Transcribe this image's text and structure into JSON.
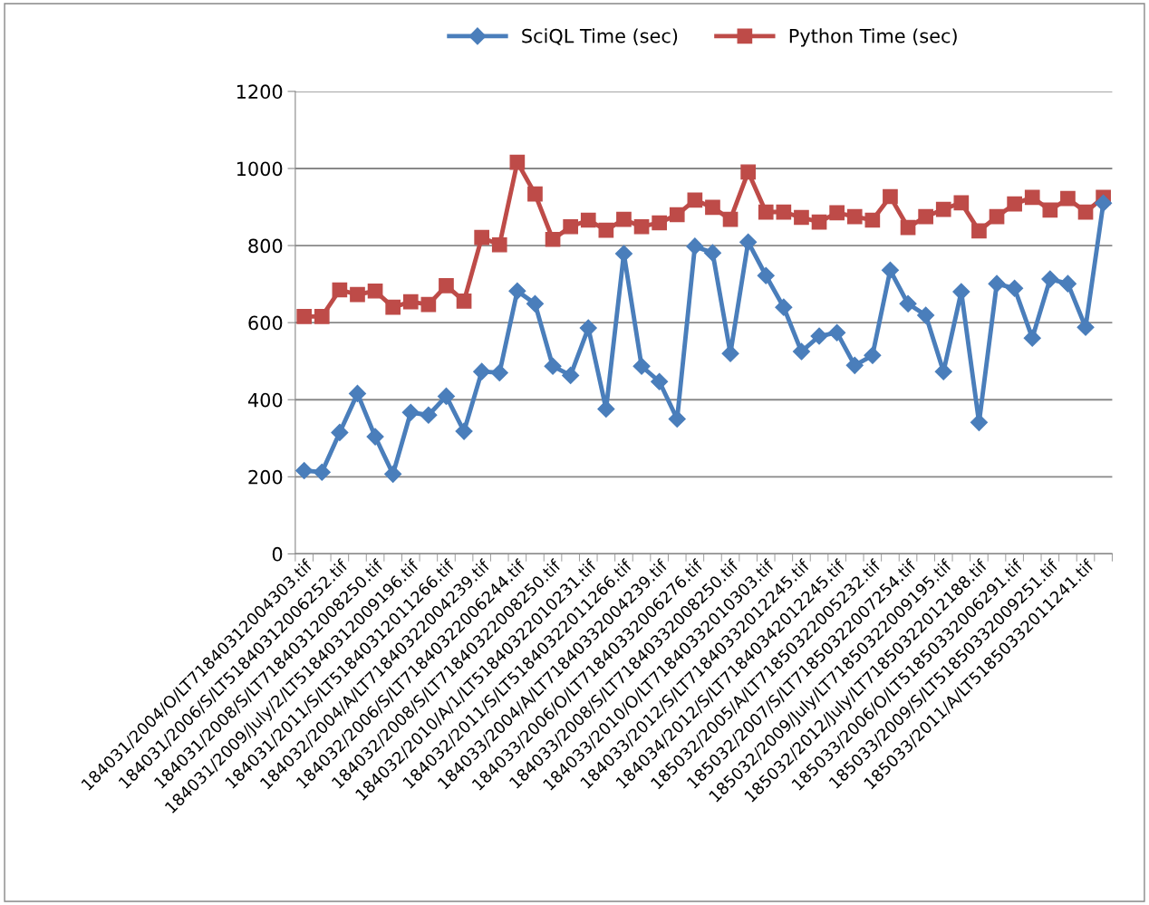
{
  "chart_data": {
    "type": "line",
    "categories": [
      "184031/2004/O/LT71840312004303.tif",
      null,
      "184031/2006/S/LT51840312006252.tif",
      null,
      "184031/2008/S/LT71840312008250.tif",
      null,
      "184031/2009/July/2/LT51840312009196.tif",
      null,
      "184031/2011/S/LT51840312011266.tif",
      null,
      "184032/2004/A/LT71840322004239.tif",
      null,
      "184032/2006/S/LT71840322006244.tif",
      null,
      "184032/2008/S/LT71840322008250.tif",
      null,
      "184032/2010/A/1/LT51840322010231.tif",
      null,
      "184032/2011/S/LT51840322011266.tif",
      null,
      "184033/2004/A/LT71840332004239.tif",
      null,
      "184033/2006/O/LT71840332006276.tif",
      null,
      "184033/2008/S/LT71840332008250.tif",
      null,
      "184033/2010/O/LT71840332010303.tif",
      null,
      "184033/2012/S/LT71840332012245.tif",
      null,
      "184034/2012/S/LT71840342012245.tif",
      null,
      "185032/2005/A/LT71850322005232.tif",
      null,
      "185032/2007/S/LT71850322007254.tif",
      null,
      "185032/2009/July/LT71850322009195.tif",
      null,
      "185032/2012/July/LT71850322012188.tif",
      null,
      "185033/2006/O/LT51850332006291.tif",
      null,
      "185033/2009/S/LT51850332009251.tif",
      null,
      "185033/2011/A/LT51850332011241.tif",
      null
    ],
    "series": [
      {
        "name": "SciQL Time (sec)",
        "color": "#4a7ebb",
        "marker": "diamond",
        "values": [
          216,
          212,
          315,
          416,
          304,
          207,
          367,
          360,
          409,
          318,
          473,
          470,
          682,
          649,
          487,
          463,
          586,
          376,
          779,
          487,
          447,
          350,
          798,
          781,
          520,
          809,
          722,
          640,
          525,
          565,
          574,
          489,
          515,
          736,
          649,
          619,
          473,
          680,
          341,
          701,
          689,
          560,
          713,
          701,
          588,
          910
        ]
      },
      {
        "name": "Python Time (sec)",
        "color": "#be4b48",
        "marker": "square",
        "values": [
          616,
          616,
          685,
          673,
          682,
          640,
          654,
          647,
          696,
          656,
          821,
          802,
          1016,
          934,
          816,
          849,
          866,
          840,
          868,
          849,
          859,
          880,
          918,
          899,
          868,
          991,
          887,
          887,
          873,
          861,
          885,
          875,
          866,
          927,
          847,
          875,
          894,
          911,
          838,
          875,
          908,
          925,
          892,
          922,
          887,
          925
        ]
      }
    ],
    "ylim": [
      0,
      1200
    ],
    "yticks": [
      0,
      200,
      400,
      600,
      800,
      1000,
      1200
    ],
    "grid": "y",
    "legend": "top",
    "line_style": "solid"
  }
}
